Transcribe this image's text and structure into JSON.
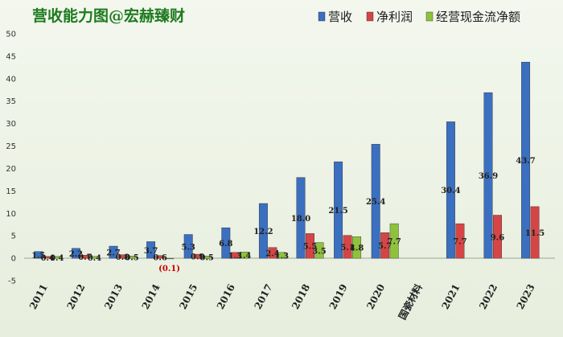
{
  "chart_data": {
    "type": "bar",
    "title": "营收能力图@宏赫臻财",
    "categories": [
      "2011",
      "2012",
      "2013",
      "2014",
      "2015",
      "2016",
      "2017",
      "2018",
      "2019",
      "2020",
      "国瓷材料",
      "2021",
      "2022",
      "2023"
    ],
    "series": [
      {
        "name": "营收",
        "color": "#3b6fc0",
        "values": [
          1.5,
          2.2,
          2.7,
          3.7,
          5.3,
          6.8,
          12.2,
          18.0,
          21.5,
          25.4,
          null,
          30.4,
          36.9,
          43.7
        ],
        "labels": [
          "1.5",
          "2.2",
          "2.7",
          "3.7",
          "5.3",
          "6.8",
          "12.2",
          "18.0",
          "21.5",
          "25.4",
          "",
          "30.4",
          "36.9",
          "43.7"
        ]
      },
      {
        "name": "净利润",
        "color": "#d64545",
        "values": [
          0.4,
          0.7,
          0.8,
          0.6,
          0.9,
          1.3,
          2.4,
          5.5,
          5.1,
          5.7,
          null,
          7.7,
          9.6,
          11.5
        ],
        "labels": [
          "0.4",
          "0.7",
          "0.8",
          "0.6",
          "0.9",
          "1.3",
          "2.4",
          "5.5",
          "5.1",
          "5.7",
          "",
          "7.7",
          "9.6",
          "11.5"
        ]
      },
      {
        "name": "经营现金流净额",
        "color": "#8fc23c",
        "values": [
          0.4,
          0.4,
          0.5,
          -0.1,
          0.5,
          1.4,
          1.3,
          3.5,
          4.8,
          7.7,
          null,
          null,
          null,
          null
        ],
        "labels": [
          "0.4",
          "0.4",
          "0.5",
          "(0.1)",
          "0.5",
          "1.4",
          "1.3",
          "3.5",
          "4.8",
          "7.7",
          "",
          "",
          "",
          ""
        ]
      }
    ],
    "xlabel": "",
    "ylabel": "",
    "ylim": [
      -5,
      50
    ],
    "yticks": [
      -5,
      0,
      5,
      10,
      15,
      20,
      25,
      30,
      35,
      40,
      45,
      50
    ],
    "ytick_labels": [
      "-5",
      "0",
      "5",
      "10",
      "15",
      "20",
      "25",
      "30",
      "35",
      "40",
      "45",
      "50"
    ],
    "grid": false,
    "legend_position": "top-right"
  }
}
